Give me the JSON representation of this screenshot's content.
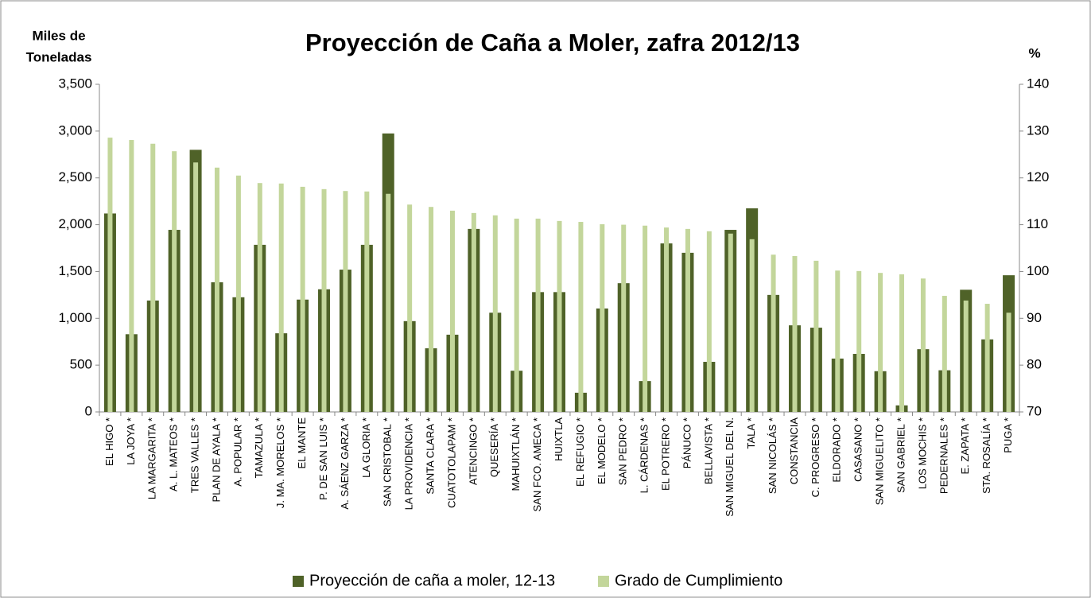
{
  "chart_data": {
    "type": "bar",
    "title": "Proyección de Caña a Moler, zafra 2012/13",
    "ylabel": [
      "Miles de",
      "Toneladas"
    ],
    "y2label": "%",
    "categories": [
      "EL HIGO *",
      "LA JOYA *",
      "LA MARGARITA *",
      "A. L. MATEOS *",
      "TRES VALLES *",
      "PLAN DE AYALA *",
      "A. POPULAR *",
      "TAMAZULA *",
      "J. MA. MORELOS *",
      "EL MANTE",
      "P. DE SAN LUIS *",
      "A. SÁENZ GARZA *",
      "LA GLORIA *",
      "SAN CRISTOBAL *",
      "LA PROVIDENCIA *",
      "SANTA CLARA *",
      "CUATOTOLAPAM *",
      "ATENCINGO *",
      "QUESERÍA *",
      "MAHUIXTLÁN *",
      "SAN FCO. AMECA *",
      "HUIXTLA",
      "EL REFUGIO *",
      "EL MODELO *",
      "SAN PEDRO *",
      "L. CÁRDENAS *",
      "EL POTRERO *",
      "PÁNUCO *",
      "BELLAVISTA *",
      "SAN MIGUEL DEL N.",
      "TALA *",
      "SAN NICOLÁS *",
      "CONSTANCIA",
      "C. PROGRESO *",
      "ELDORADO *",
      "CASASANO *",
      "SAN MIGUELITO *",
      "SAN GABRIEL *",
      "LOS MOCHIS *",
      "PEDERNALES *",
      "E. ZAPATA *",
      "STA. ROSALÍA *",
      "PUGA *"
    ],
    "series": [
      {
        "name": "Proyección de caña a moler, 12-13",
        "color": "#4f6228",
        "values": [
          2120,
          830,
          1190,
          1945,
          2800,
          1385,
          1225,
          1785,
          840,
          1200,
          1310,
          1520,
          1785,
          2975,
          970,
          680,
          825,
          1955,
          1060,
          440,
          1280,
          1280,
          205,
          1105,
          1375,
          330,
          1800,
          1700,
          535,
          1945,
          2175,
          1250,
          925,
          900,
          570,
          620,
          435,
          70,
          670,
          445,
          1305,
          775,
          1460
        ]
      },
      {
        "name": "Grado de Cumplimiento",
        "color": "#c3d69b",
        "axis": "y2",
        "values": [
          128.6,
          128.1,
          127.3,
          125.7,
          123.3,
          122.2,
          120.5,
          118.9,
          118.8,
          118.1,
          117.6,
          117.2,
          117.1,
          116.6,
          114.3,
          113.8,
          113.0,
          112.5,
          112.0,
          111.3,
          111.3,
          110.8,
          110.6,
          110.1,
          110.0,
          109.8,
          109.4,
          109.1,
          108.6,
          108.1,
          106.9,
          103.6,
          103.3,
          102.3,
          100.2,
          100.1,
          99.7,
          99.4,
          98.5,
          94.8,
          93.8,
          93.1,
          91.2
        ]
      }
    ],
    "ylim": [
      0,
      3500
    ],
    "yticks": [
      0,
      500,
      {
        "value": 1000,
        "label": "1,000"
      },
      {
        "value": 1500,
        "label": "1,500"
      },
      {
        "value": 2000,
        "label": "2,000"
      },
      {
        "value": 2500,
        "label": "2,500"
      },
      {
        "value": 3000,
        "label": "3,000"
      },
      {
        "value": 3500,
        "label": "3,500"
      }
    ],
    "y2lim": [
      70,
      140
    ],
    "y2ticks": [
      70,
      80,
      90,
      100,
      110,
      120,
      130,
      140
    ],
    "grid": false,
    "legend": "bottom"
  }
}
